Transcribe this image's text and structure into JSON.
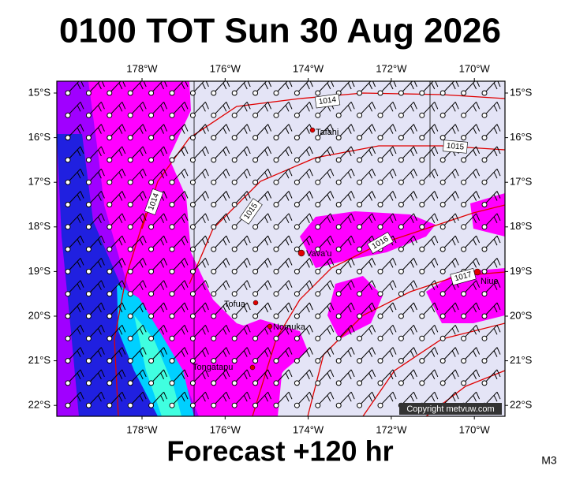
{
  "title": "0100 TOT Sun 30 Aug 2026",
  "footer": "Forecast +120 hr",
  "model": "M3",
  "copyright": "Copyright metvuw.com",
  "longitudes": [
    "178°W",
    "176°W",
    "174°W",
    "172°W",
    "170°W"
  ],
  "latitudes": [
    "15°S",
    "16°S",
    "17°S",
    "18°S",
    "19°S",
    "20°S",
    "21°S",
    "22°S"
  ],
  "places": [
    "Tafahi",
    "Vava'u",
    "Niue",
    "Tofua",
    "Nomuka",
    "Tongatapu"
  ],
  "isobars": [
    "1014",
    "1015",
    "1014",
    "1015",
    "1016",
    "1017"
  ]
}
